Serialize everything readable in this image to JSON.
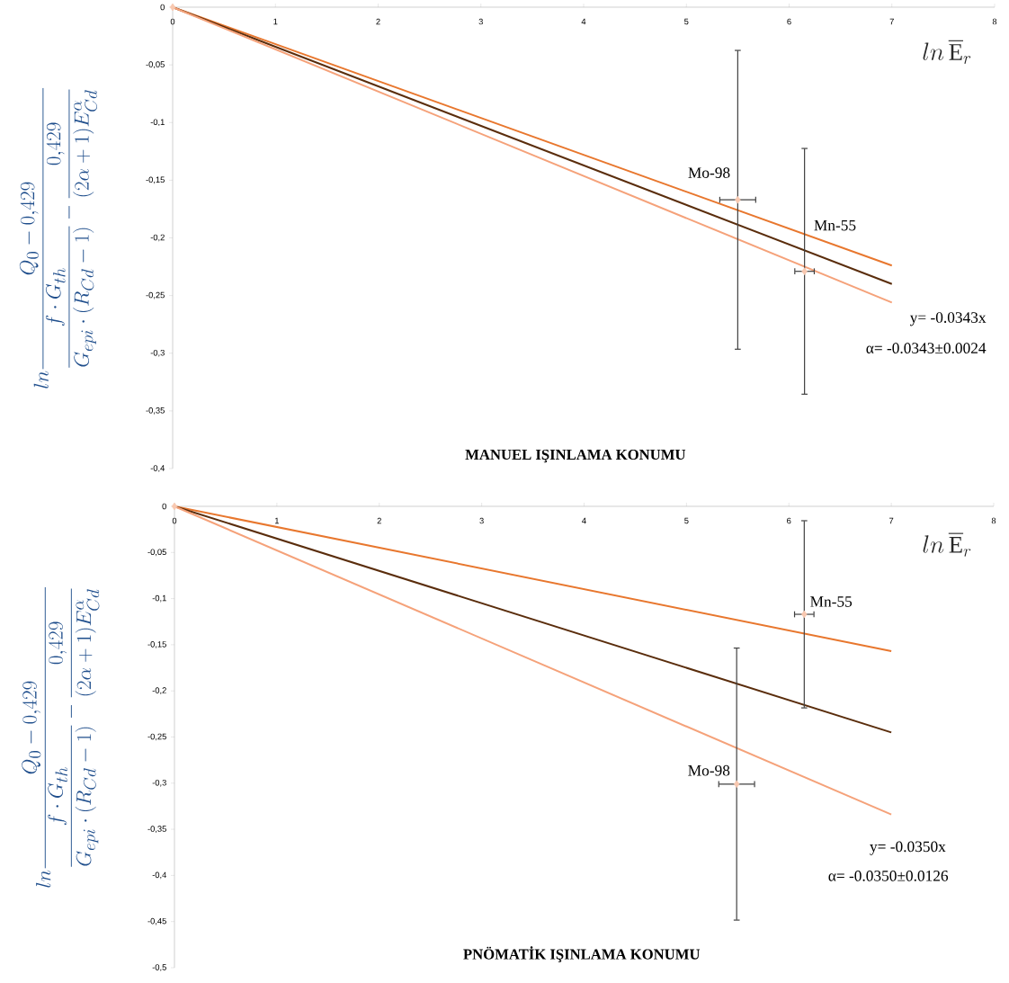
{
  "chart_data": [
    {
      "type": "line",
      "title": "MANUEL IŞINLAMA KONUMU",
      "xlabel": "ln\\,\\overline{\\mathrm{E}}_r",
      "ylabel": "ln\\frac{Q_0 - 0{,}429}{\\dfrac{f\\cdot G_{th}}{G_{epi}\\cdot(R_{Cd}-1)} - \\dfrac{0{,}429}{(2\\alpha+1)E_{Cd}^{\\alpha}}}",
      "xlim": [
        0,
        8
      ],
      "xticks": [
        0,
        1,
        2,
        3,
        4,
        5,
        6,
        7,
        8
      ],
      "ylim": [
        -0.4,
        0
      ],
      "yticks": [
        {
          "value": -0.4,
          "label": "-0,4"
        },
        {
          "value": -0.35,
          "label": "-0,35"
        },
        {
          "value": -0.3,
          "label": "-0,3"
        },
        {
          "value": -0.25,
          "label": "-0,25"
        },
        {
          "value": -0.2,
          "label": "-0,2"
        },
        {
          "value": -0.15,
          "label": "-0,15"
        },
        {
          "value": -0.1,
          "label": "-0,1"
        },
        {
          "value": -0.05,
          "label": "-0,05"
        },
        0
      ],
      "series": [
        {
          "color": "#e8772e",
          "x": [
            0,
            7
          ],
          "values": [
            0,
            -0.224
          ]
        },
        {
          "color": "#5a2d0c",
          "x": [
            0,
            7
          ],
          "values": [
            0,
            -0.24
          ]
        },
        {
          "color": "#f5a27a",
          "x": [
            0,
            7
          ],
          "values": [
            0,
            -0.256
          ]
        },
        {
          "type": "scatter",
          "color": "#f8c8b0",
          "marker": "diamond",
          "x": [
            0,
            5.5,
            6.15
          ],
          "values": [
            0,
            -0.167,
            -0.229
          ],
          "errors": [
            null,
            0.13,
            0.107
          ],
          "xerrors": [
            null,
            0.18,
            0.1
          ]
        }
      ],
      "annotations": [
        {
          "text": "Mo-98",
          "x": 5.5,
          "y": -0.167
        },
        {
          "text": "Mn-55",
          "x": 6.15,
          "y": -0.229
        },
        "y= -0.0343x",
        "α= -0.0343±0.0024"
      ]
    },
    {
      "type": "line",
      "title": "PNÖMATİK IŞINLAMA KONUMU",
      "xlabel": "ln\\,\\overline{\\mathrm{E}}_r",
      "ylabel": "ln\\frac{Q_0 - 0{,}429}{\\dfrac{f\\cdot G_{th}}{G_{epi}\\cdot(R_{Cd}-1)} - \\dfrac{0{,}429}{(2\\alpha+1)E_{Cd}^{\\alpha}}}",
      "xlim": [
        0,
        8
      ],
      "xticks": [
        0,
        1,
        2,
        3,
        4,
        5,
        6,
        7,
        8
      ],
      "ylim": [
        -0.5,
        0
      ],
      "yticks": [
        {
          "value": -0.5,
          "label": "-0,5"
        },
        {
          "value": -0.45,
          "label": "-0,45"
        },
        {
          "value": -0.4,
          "label": "-0,4"
        },
        {
          "value": -0.35,
          "label": "-0,35"
        },
        {
          "value": -0.3,
          "label": "-0,3"
        },
        {
          "value": -0.25,
          "label": "-0,25"
        },
        {
          "value": -0.2,
          "label": "-0,2"
        },
        {
          "value": -0.15,
          "label": "-0,15"
        },
        {
          "value": -0.1,
          "label": "-0,1"
        },
        {
          "value": -0.05,
          "label": "-0,05"
        },
        0
      ],
      "series": [
        {
          "color": "#e8772e",
          "x": [
            0,
            7
          ],
          "values": [
            0,
            -0.157
          ]
        },
        {
          "color": "#5a2d0c",
          "x": [
            0,
            7
          ],
          "values": [
            0,
            -0.245
          ]
        },
        {
          "color": "#f5a27a",
          "x": [
            0,
            7
          ],
          "values": [
            0,
            -0.334
          ]
        },
        {
          "type": "scatter",
          "color": "#f8c8b0",
          "marker": "diamond",
          "x": [
            0,
            5.49,
            6.15
          ],
          "values": [
            0,
            -0.301,
            -0.117
          ],
          "errors": [
            null,
            0.148,
            0.102
          ],
          "xerrors": [
            null,
            0.18,
            0.1
          ]
        }
      ],
      "annotations": [
        {
          "text": "Mo-98",
          "x": 5.49,
          "y": -0.301
        },
        {
          "text": "Mn-55",
          "x": 6.15,
          "y": -0.117
        },
        "y= -0.0350x",
        "α= -0.0350±0.0126"
      ]
    }
  ]
}
